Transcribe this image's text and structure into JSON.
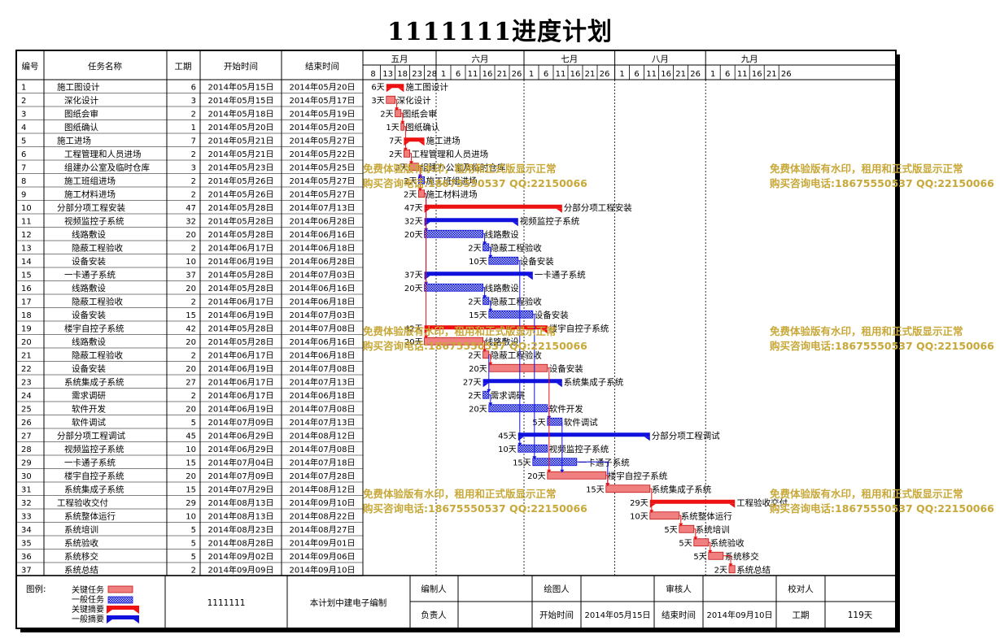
{
  "title": "1111111进度计划",
  "headers": {
    "num": "编号",
    "name": "任务名称",
    "dur": "工期",
    "start": "开始时间",
    "end": "结束时间"
  },
  "months": [
    "五月",
    "六月",
    "七月",
    "八月",
    "九月"
  ],
  "day_ticks": [
    "8",
    "13",
    "18",
    "23",
    "28",
    "1",
    "6",
    "11",
    "16",
    "21",
    "26",
    "1",
    "6",
    "11",
    "16",
    "21",
    "26",
    "1",
    "6",
    "11",
    "16",
    "21",
    "26",
    "1",
    "6",
    "11",
    "16",
    "21",
    "26"
  ],
  "watermark": {
    "line1": "免费体验版有水印，租用和正式版显示正常",
    "line2": "购买咨询电话:18675550537 QQ:22150066"
  },
  "legend": {
    "label": "图例:",
    "critical_task": "关键任务",
    "normal_task": "一般任务",
    "critical_summary": "关键摘要",
    "normal_summary": "一般摘要"
  },
  "footer": {
    "project": "1111111",
    "note": "本计划中建电子编制",
    "editor_label": "编制人",
    "drawer_label": "绘图人",
    "reviewer_label": "审核人",
    "checker_label": "校对人",
    "owner_label": "负责人",
    "start_label": "开始时间",
    "start_value": "2014年05月15日",
    "end_label": "结束时间",
    "end_value": "2014年09月10日",
    "dur_label": "工期",
    "dur_value": "119天"
  },
  "colors": {
    "critical": "#ee1111",
    "critical_fill": "#f08080",
    "normal": "#1111dd",
    "normal_fill": "#8fa0e8"
  },
  "chart_data": {
    "type": "gantt",
    "title": "1111111进度计划",
    "x_range": [
      "2014-05-07",
      "2014-09-29"
    ],
    "tasks": [
      {
        "id": "1",
        "name": "施工图设计",
        "level": 0,
        "duration": 6,
        "start": "2014年05月15日",
        "end": "2014年05月20日",
        "kind": "critical-summary"
      },
      {
        "id": "2",
        "name": "深化设计",
        "level": 1,
        "duration": 3,
        "start": "2014年05月15日",
        "end": "2014年05月17日",
        "kind": "critical"
      },
      {
        "id": "3",
        "name": "图纸会审",
        "level": 1,
        "duration": 2,
        "start": "2014年05月18日",
        "end": "2014年05月19日",
        "kind": "critical"
      },
      {
        "id": "4",
        "name": "图纸确认",
        "level": 1,
        "duration": 1,
        "start": "2014年05月20日",
        "end": "2014年05月20日",
        "kind": "critical"
      },
      {
        "id": "5",
        "name": "施工进场",
        "level": 0,
        "duration": 7,
        "start": "2014年05月21日",
        "end": "2014年05月27日",
        "kind": "critical-summary"
      },
      {
        "id": "6",
        "name": "工程管理和人员进场",
        "level": 1,
        "duration": 2,
        "start": "2014年05月21日",
        "end": "2014年05月22日",
        "kind": "critical"
      },
      {
        "id": "7",
        "name": "组建办公室及临时仓库",
        "level": 1,
        "duration": 3,
        "start": "2014年05月23日",
        "end": "2014年05月25日",
        "kind": "critical"
      },
      {
        "id": "8",
        "name": "施工班组进场",
        "level": 1,
        "duration": 2,
        "start": "2014年05月26日",
        "end": "2014年05月27日",
        "kind": "normal"
      },
      {
        "id": "9",
        "name": "施工材料进场",
        "level": 1,
        "duration": 2,
        "start": "2014年05月26日",
        "end": "2014年05月27日",
        "kind": "critical"
      },
      {
        "id": "10",
        "name": "分部分项工程安装",
        "level": 0,
        "duration": 47,
        "start": "2014年05月28日",
        "end": "2014年07月13日",
        "kind": "critical-summary"
      },
      {
        "id": "11",
        "name": "视频监控子系统",
        "level": 1,
        "duration": 32,
        "start": "2014年05月28日",
        "end": "2014年06月28日",
        "kind": "normal-summary"
      },
      {
        "id": "12",
        "name": "线路敷设",
        "level": 2,
        "duration": 20,
        "start": "2014年05月28日",
        "end": "2014年06月16日",
        "kind": "normal"
      },
      {
        "id": "13",
        "name": "隐蔽工程验收",
        "level": 2,
        "duration": 2,
        "start": "2014年06月17日",
        "end": "2014年06月18日",
        "kind": "normal"
      },
      {
        "id": "14",
        "name": "设备安装",
        "level": 2,
        "duration": 10,
        "start": "2014年06月19日",
        "end": "2014年06月28日",
        "kind": "normal"
      },
      {
        "id": "15",
        "name": "一卡通子系统",
        "level": 1,
        "duration": 37,
        "start": "2014年05月28日",
        "end": "2014年07月03日",
        "kind": "normal-summary"
      },
      {
        "id": "16",
        "name": "线路敷设",
        "level": 2,
        "duration": 20,
        "start": "2014年05月28日",
        "end": "2014年06月16日",
        "kind": "normal"
      },
      {
        "id": "17",
        "name": "隐蔽工程验收",
        "level": 2,
        "duration": 2,
        "start": "2014年06月17日",
        "end": "2014年06月18日",
        "kind": "normal"
      },
      {
        "id": "18",
        "name": "设备安装",
        "level": 2,
        "duration": 15,
        "start": "2014年06月19日",
        "end": "2014年07月03日",
        "kind": "normal"
      },
      {
        "id": "19",
        "name": "楼宇自控子系统",
        "level": 1,
        "duration": 42,
        "start": "2014年05月28日",
        "end": "2014年07月08日",
        "kind": "critical-summary"
      },
      {
        "id": "20",
        "name": "线路敷设",
        "level": 2,
        "duration": 20,
        "start": "2014年05月28日",
        "end": "2014年06月16日",
        "kind": "critical"
      },
      {
        "id": "21",
        "name": "隐蔽工程验收",
        "level": 2,
        "duration": 2,
        "start": "2014年06月17日",
        "end": "2014年06月18日",
        "kind": "critical"
      },
      {
        "id": "22",
        "name": "设备安装",
        "level": 2,
        "duration": 20,
        "start": "2014年06月19日",
        "end": "2014年07月08日",
        "kind": "critical"
      },
      {
        "id": "23",
        "name": "系统集成子系统",
        "level": 1,
        "duration": 27,
        "start": "2014年06月17日",
        "end": "2014年07月13日",
        "kind": "normal-summary"
      },
      {
        "id": "24",
        "name": "需求调研",
        "level": 2,
        "duration": 2,
        "start": "2014年06月17日",
        "end": "2014年06月18日",
        "kind": "normal"
      },
      {
        "id": "25",
        "name": "软件开发",
        "level": 2,
        "duration": 20,
        "start": "2014年06月19日",
        "end": "2014年07月08日",
        "kind": "normal"
      },
      {
        "id": "26",
        "name": "软件调试",
        "level": 2,
        "duration": 5,
        "start": "2014年07月09日",
        "end": "2014年07月13日",
        "kind": "normal"
      },
      {
        "id": "27",
        "name": "分部分项工程调试",
        "level": 0,
        "duration": 45,
        "start": "2014年06月29日",
        "end": "2014年08月12日",
        "kind": "normal-summary"
      },
      {
        "id": "28",
        "name": "视频监控子系统",
        "level": 1,
        "duration": 10,
        "start": "2014年06月29日",
        "end": "2014年07月08日",
        "kind": "normal"
      },
      {
        "id": "29",
        "name": "一卡通子系统",
        "level": 1,
        "duration": 15,
        "start": "2014年07月04日",
        "end": "2014年07月18日",
        "kind": "normal"
      },
      {
        "id": "30",
        "name": "楼宇自控子系统",
        "level": 1,
        "duration": 20,
        "start": "2014年07月09日",
        "end": "2014年07月28日",
        "kind": "critical"
      },
      {
        "id": "31",
        "name": "系统集成子系统",
        "level": 1,
        "duration": 15,
        "start": "2014年07月29日",
        "end": "2014年08月12日",
        "kind": "critical"
      },
      {
        "id": "32",
        "name": "工程验收交付",
        "level": 0,
        "duration": 29,
        "start": "2014年08月13日",
        "end": "2014年09月10日",
        "kind": "critical-summary"
      },
      {
        "id": "33",
        "name": "系统整体运行",
        "level": 1,
        "duration": 10,
        "start": "2014年08月13日",
        "end": "2014年08月22日",
        "kind": "critical"
      },
      {
        "id": "34",
        "name": "系统培训",
        "level": 1,
        "duration": 5,
        "start": "2014年08月23日",
        "end": "2014年08月27日",
        "kind": "critical"
      },
      {
        "id": "35",
        "name": "系统验收",
        "level": 1,
        "duration": 5,
        "start": "2014年08月28日",
        "end": "2014年09月01日",
        "kind": "critical"
      },
      {
        "id": "36",
        "name": "系统移交",
        "level": 1,
        "duration": 5,
        "start": "2014年09月02日",
        "end": "2014年09月06日",
        "kind": "critical"
      },
      {
        "id": "37",
        "name": "系统总结",
        "level": 1,
        "duration": 2,
        "start": "2014年09月09日",
        "end": "2014年09月10日",
        "kind": "critical"
      }
    ]
  }
}
